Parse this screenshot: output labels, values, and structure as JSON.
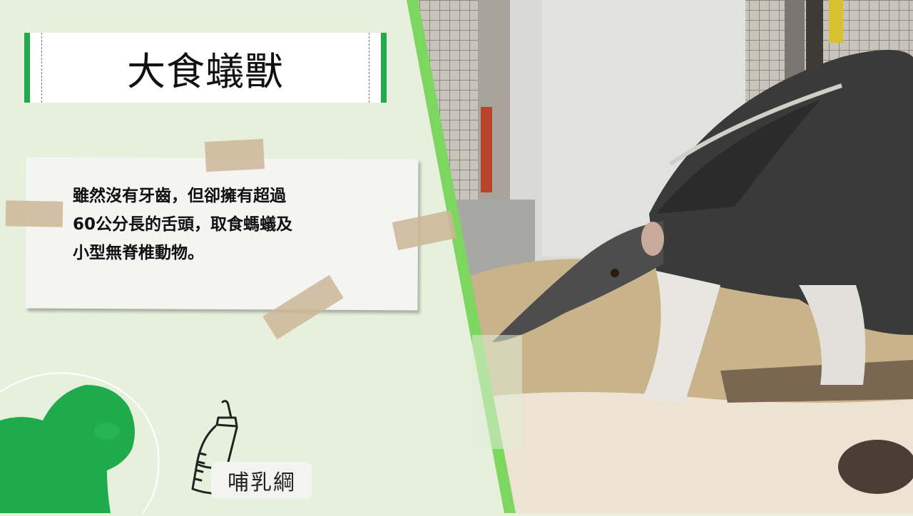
{
  "title": "大食蟻獸",
  "description": "雖然沒有牙齒，但卻擁有超過\n60公分長的舌頭，取食螞蟻及\n小型無脊椎動物。",
  "category_badge": "哺乳綱",
  "icons": {
    "silhouette": "gorilla-silhouette-icon",
    "bottle": "baby-bottle-icon"
  },
  "colors": {
    "accent": "#1faa4b",
    "stripe": "#7dd660",
    "background": "#e6f0dc"
  }
}
